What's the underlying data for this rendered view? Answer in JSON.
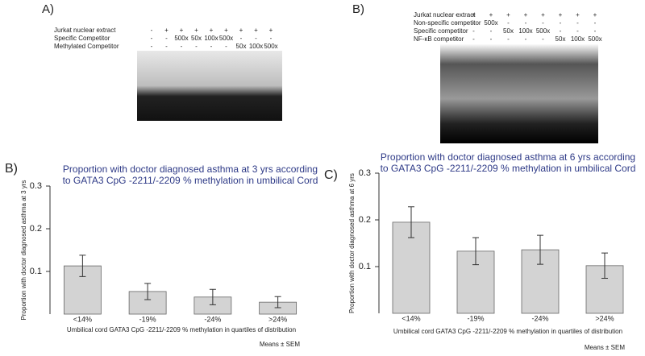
{
  "panels": {
    "a": "A)",
    "b_gel": "B)",
    "b_chart": "B)",
    "c": "C)"
  },
  "gel_a": {
    "rows": [
      {
        "label": "Jurkat nuclear extract",
        "cells": [
          "-",
          "+",
          "+",
          "+",
          "+",
          "+",
          "+",
          "+",
          "+"
        ]
      },
      {
        "label": "Specific Competitor",
        "cells": [
          "-",
          "-",
          "500x",
          "50x",
          "100x",
          "500x",
          "-",
          "-",
          "-"
        ]
      },
      {
        "label": "Methylated  Competitor",
        "cells": [
          "-",
          "-",
          "-",
          "-",
          "-",
          "-",
          "50x",
          "100x",
          "500x"
        ]
      }
    ]
  },
  "gel_b": {
    "rows": [
      {
        "label": "Jurkat nuclear extract",
        "cells": [
          "-",
          "+",
          "+",
          "+",
          "+",
          "+",
          "+",
          "+",
          "+"
        ]
      },
      {
        "label": "Non-specific competitor",
        "cells": [
          "-",
          "-",
          "500x",
          "-",
          "-",
          "-",
          "-",
          "-",
          "-"
        ]
      },
      {
        "label": "Specific competitor",
        "cells": [
          "-",
          "-",
          "-",
          "50x",
          "100x",
          "500x",
          "-",
          "-",
          "-"
        ]
      },
      {
        "label": "NF-κB competitor",
        "cells": [
          "-",
          "-",
          "-",
          "-",
          "-",
          "-",
          "50x",
          "100x",
          "500x"
        ]
      }
    ]
  },
  "chart_data": [
    {
      "type": "bar",
      "title": [
        "Proportion with doctor diagnosed asthma at 3 yrs according",
        "to GATA3 CpG -2211/-2209  % methylation  in umbilical Cord"
      ],
      "ylabel": "Proportion with doctor diagnosed asthma at 3 yrs",
      "xlabel": "Umbilical cord GATA3  CpG -2211/-2209   % methylation  in quartiles of distribution",
      "note": "Means ± SEM",
      "categories": [
        "<14%",
        "-19%",
        "-24%",
        ">24%"
      ],
      "values": [
        0.113,
        0.053,
        0.04,
        0.028
      ],
      "errors": [
        0.025,
        0.019,
        0.018,
        0.013
      ],
      "color": "#d3d3d3",
      "ylim": [
        0,
        0.3
      ],
      "yticks": [
        0.1,
        0.2,
        0.3
      ]
    },
    {
      "type": "bar",
      "title": [
        "Proportion with doctor diagnosed asthma at 6 yrs according",
        "to GATA3 CpG -2211/-2209  % methylation  in umbilical Cord"
      ],
      "ylabel": "Proportion with doctor diagnosed asthma at 6 yrs",
      "xlabel": "Umbilical cord GATA3  CpG -2211/-2209   % methylation  in quartiles of distribution",
      "note": "Means ± SEM",
      "categories": [
        "<14%",
        "-19%",
        "-24%",
        ">24%"
      ],
      "values": [
        0.195,
        0.133,
        0.136,
        0.102
      ],
      "errors": [
        0.033,
        0.029,
        0.031,
        0.027
      ],
      "color": "#d3d3d3",
      "ylim": [
        0,
        0.3
      ],
      "yticks": [
        0.1,
        0.2,
        0.3
      ]
    }
  ]
}
